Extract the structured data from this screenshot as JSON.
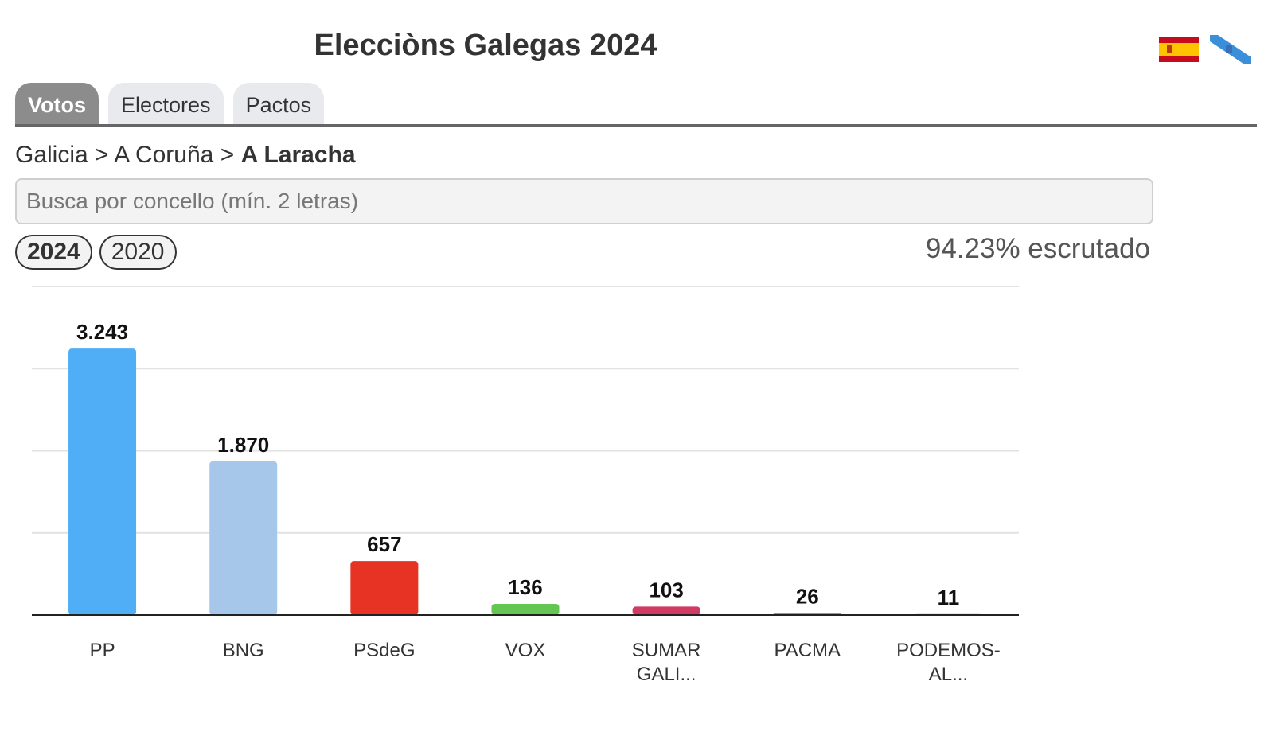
{
  "header": {
    "title": "Elecciòns Galegas 2024"
  },
  "languages": [
    {
      "icon": "spain-flag-icon"
    },
    {
      "icon": "galicia-flag-icon"
    }
  ],
  "tabs": [
    {
      "label": "Votos",
      "active": true
    },
    {
      "label": "Electores",
      "active": false
    },
    {
      "label": "Pactos",
      "active": false
    }
  ],
  "breadcrumb": {
    "items": [
      "Galicia",
      "A Coruña"
    ],
    "separator": ">",
    "current": "A Laracha"
  },
  "search": {
    "placeholder": "Busca por concello (mín. 2 letras)",
    "value": ""
  },
  "years": [
    {
      "label": "2024",
      "active": true
    },
    {
      "label": "2020",
      "active": false
    }
  ],
  "status": {
    "escrutado": "94.23% escrutado"
  },
  "chart_data": {
    "type": "bar",
    "categories": [
      [
        "PP"
      ],
      [
        "BNG"
      ],
      [
        "PSdeG"
      ],
      [
        "VOX"
      ],
      [
        "SUMAR",
        "GALI..."
      ],
      [
        "PACMA"
      ],
      [
        "PODEMOS-",
        "AL..."
      ]
    ],
    "values": [
      3243,
      1870,
      657,
      136,
      103,
      26,
      11
    ],
    "value_labels": [
      "3.243",
      "1.870",
      "657",
      "136",
      "103",
      "26",
      "11"
    ],
    "colors": [
      "#50aef7",
      "#a7c7ea",
      "#e73323",
      "#63c552",
      "#d03b63",
      "#7fb04a",
      "#7c2f84"
    ],
    "ylim": [
      0,
      4000
    ],
    "gridlines": [
      1000,
      2000,
      3000,
      4000
    ],
    "grid": true,
    "legend": "none"
  }
}
